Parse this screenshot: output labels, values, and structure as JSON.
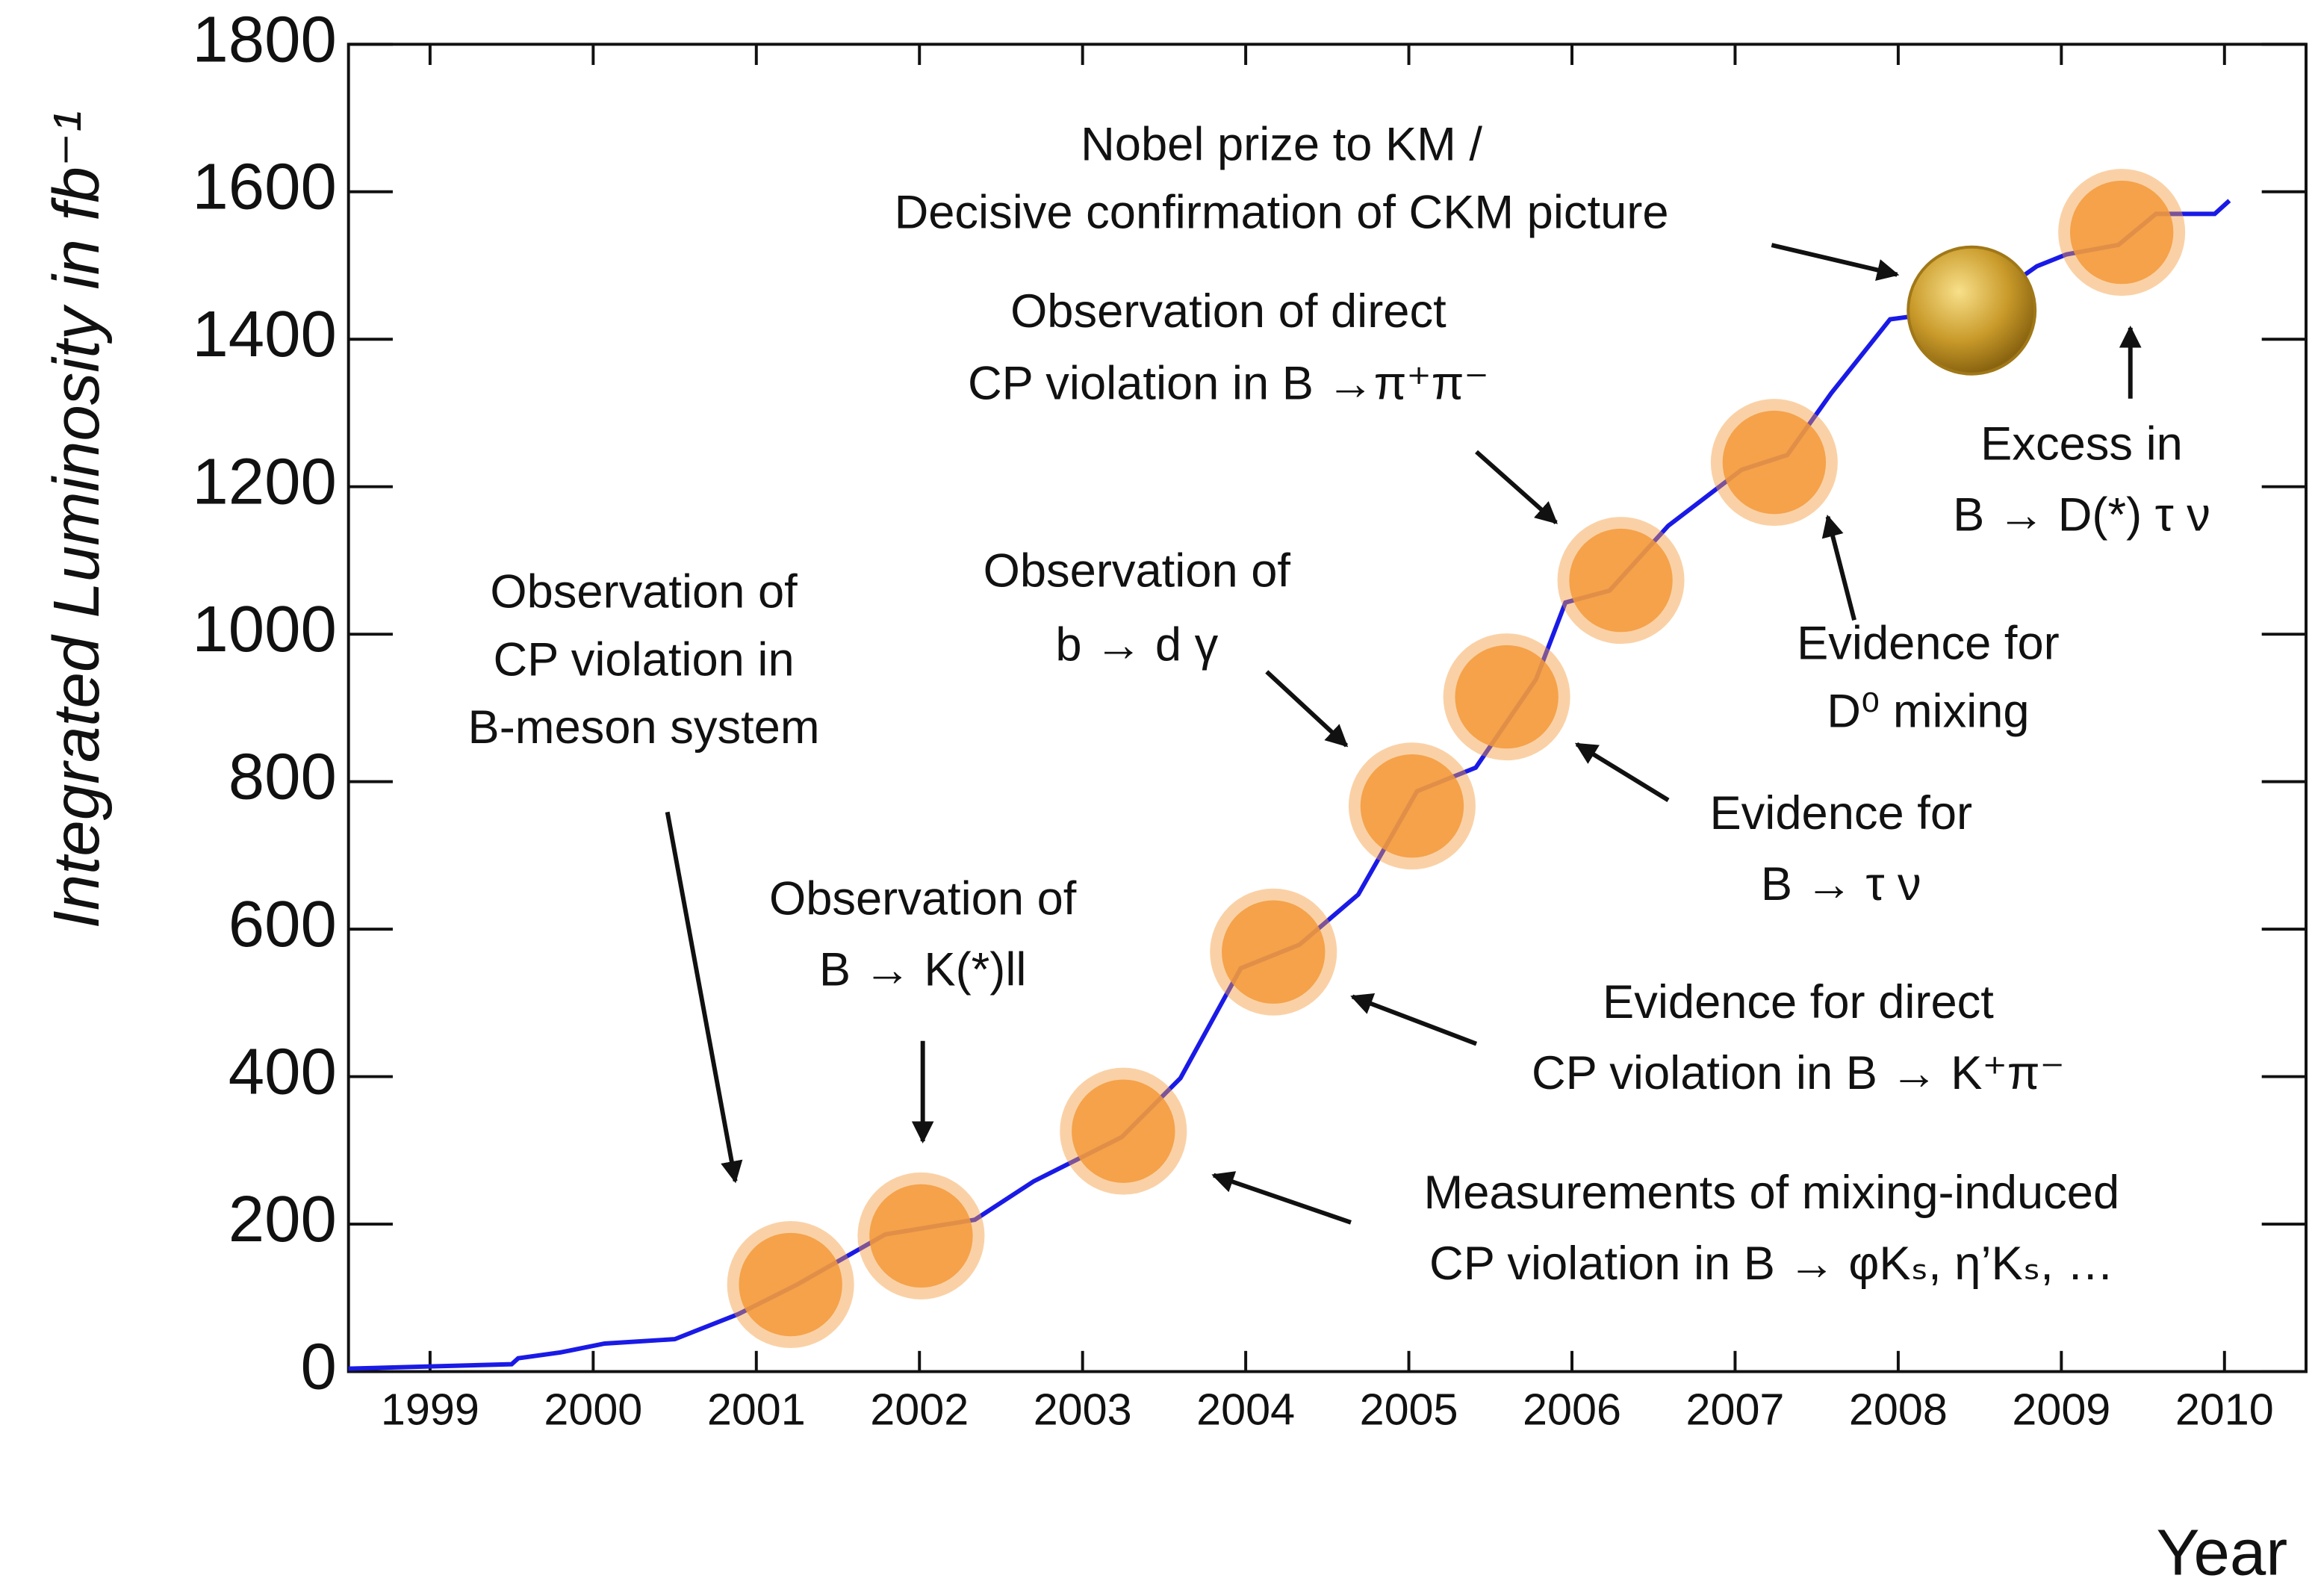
{
  "chart_data": {
    "type": "line",
    "x_label": "Year",
    "y_label": "Integrated Luminosity in fb⁻¹",
    "xlim": [
      1999,
      2011
    ],
    "ylim": [
      0,
      1800
    ],
    "xticks": [
      {
        "value": 1999.5,
        "label": "1999"
      },
      {
        "value": 2000.5,
        "label": "2000"
      },
      {
        "value": 2001.5,
        "label": "2001"
      },
      {
        "value": 2002.5,
        "label": "2002"
      },
      {
        "value": 2003.5,
        "label": "2003"
      },
      {
        "value": 2004.5,
        "label": "2004"
      },
      {
        "value": 2005.5,
        "label": "2005"
      },
      {
        "value": 2006.5,
        "label": "2006"
      },
      {
        "value": 2007.5,
        "label": "2007"
      },
      {
        "value": 2008.5,
        "label": "2008"
      },
      {
        "value": 2009.5,
        "label": "2009"
      },
      {
        "value": 2010.5,
        "label": "2010"
      }
    ],
    "yticks": [
      0,
      200,
      400,
      600,
      800,
      1000,
      1200,
      1400,
      1600,
      1800
    ],
    "series": [
      {
        "color": "#1a1ae6",
        "x": [
          1999.0,
          2000.0,
          2000.04,
          2000.3,
          2000.57,
          2001.0,
          2001.39,
          2001.75,
          2002.29,
          2002.84,
          2003.2,
          2003.74,
          2004.1,
          2004.47,
          2004.83,
          2005.19,
          2005.55,
          2005.91,
          2006.28,
          2006.46,
          2006.73,
          2007.09,
          2007.54,
          2007.82,
          2008.09,
          2008.45,
          2008.99,
          2009.35,
          2009.53,
          2009.85,
          2010.08,
          2010.44,
          2010.53
        ],
        "values": [
          4,
          10,
          18,
          26,
          38,
          44,
          78,
          118,
          186,
          206,
          258,
          318,
          398,
          547,
          579,
          647,
          787,
          819,
          939,
          1043,
          1059,
          1147,
          1223,
          1243,
          1327,
          1427,
          1443,
          1499,
          1515,
          1528,
          1570,
          1570,
          1588
        ]
      }
    ],
    "marker_color": "#f39a3a",
    "events": [
      {
        "x": 2001.71,
        "y": 118,
        "lines": [
          "Observation of",
          "CP violation in",
          "B-meson system"
        ]
      },
      {
        "x": 2002.51,
        "y": 184,
        "lines": [
          "Observation of",
          "B → K(*)ll"
        ]
      },
      {
        "x": 2003.75,
        "y": 326,
        "lines": [
          "Measurements of mixing-induced",
          "CP violation in B → φKₛ, η’Kₛ, …"
        ]
      },
      {
        "x": 2004.67,
        "y": 569,
        "lines": [
          "Evidence for direct",
          "CP violation in B → K⁺π⁻"
        ]
      },
      {
        "x": 2005.52,
        "y": 767,
        "lines": [
          "Observation of",
          "b → d γ"
        ]
      },
      {
        "x": 2006.1,
        "y": 915,
        "lines": [
          "Evidence for",
          "B → τ ν"
        ]
      },
      {
        "x": 2006.8,
        "y": 1073,
        "lines": [
          "Observation of direct",
          "CP violation in B →π⁺π⁻"
        ]
      },
      {
        "x": 2007.74,
        "y": 1233,
        "lines": [
          "Evidence for",
          "D⁰ mixing"
        ]
      },
      {
        "x": 2008.95,
        "y": 1439,
        "lines": [
          "Nobel prize to KM /",
          "Decisive confirmation of CKM picture"
        ]
      },
      {
        "x": 2009.87,
        "y": 1545,
        "lines": [
          "Excess in",
          "B → D(*) τ ν"
        ]
      }
    ]
  }
}
